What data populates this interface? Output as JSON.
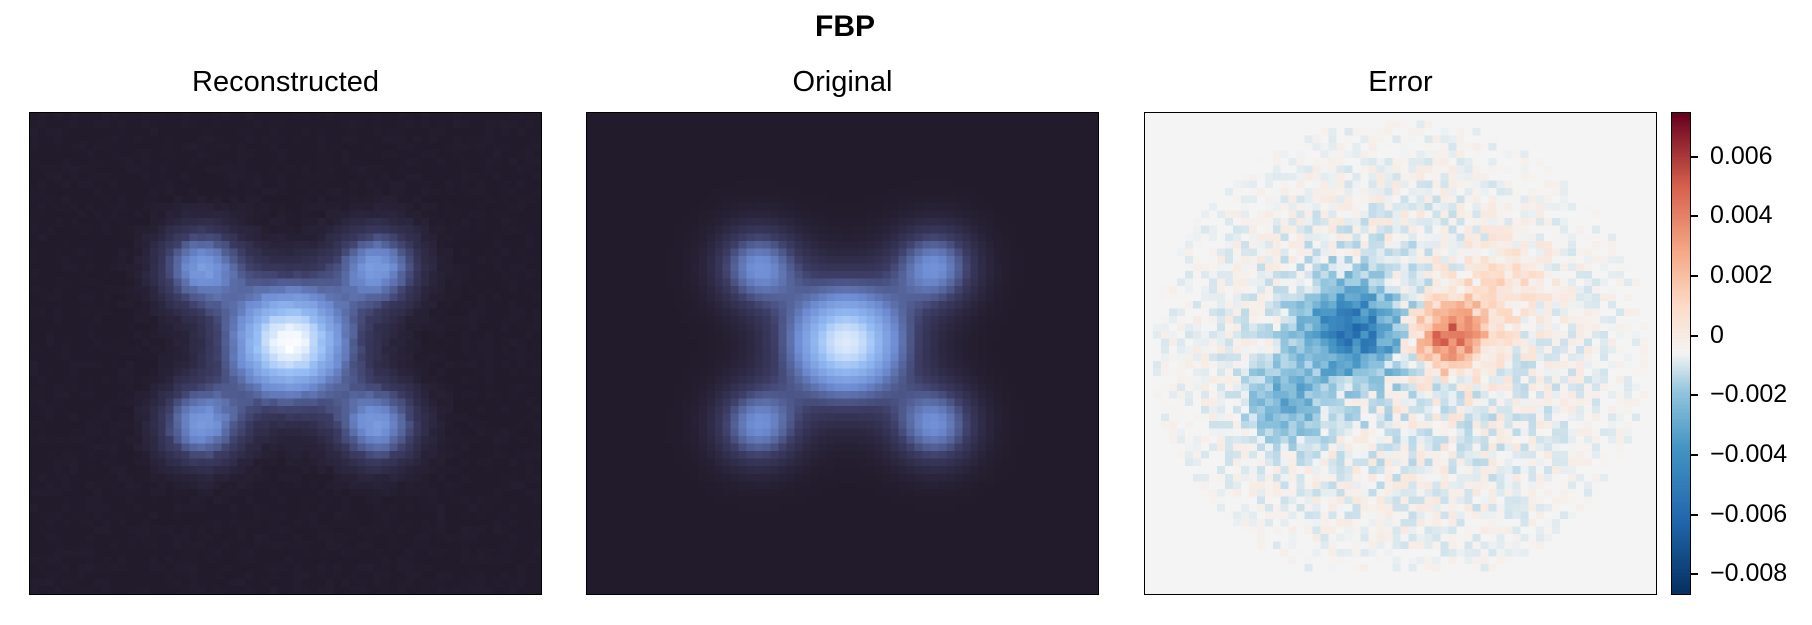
{
  "figure_title": "FBP",
  "panels": [
    {
      "title": "Reconstructed",
      "colormap": "dark-to-lightblue"
    },
    {
      "title": "Original",
      "colormap": "dark-to-lightblue"
    },
    {
      "title": "Error",
      "colormap": "RdBu_r"
    }
  ],
  "colorbar": {
    "ticks": [
      "0.006",
      "0.004",
      "0.002",
      "0",
      "−0.002",
      "−0.004",
      "−0.006",
      "−0.008"
    ],
    "tick_values": [
      0.006,
      0.004,
      0.002,
      0,
      -0.002,
      -0.004,
      -0.006,
      -0.008
    ],
    "min": -0.0087,
    "max": 0.0075
  },
  "colors": {
    "background_dark": "#221b2b",
    "highlight": "#ffffff",
    "mid_blue": "#7fa1e0",
    "error_pos": "#b2182b",
    "error_neg": "#2166ac",
    "error_zero": "#f4f4f4"
  },
  "chart_data": {
    "type": "heatmap",
    "title": "FBP",
    "subplots": [
      {
        "title": "Reconstructed",
        "description_values": "image with one bright center blob and four satellite blobs"
      },
      {
        "title": "Original",
        "description_values": "image with one bright center blob and four satellite blobs"
      },
      {
        "title": "Error",
        "colorbar_range": [
          -0.0087,
          0.0075
        ]
      }
    ]
  }
}
